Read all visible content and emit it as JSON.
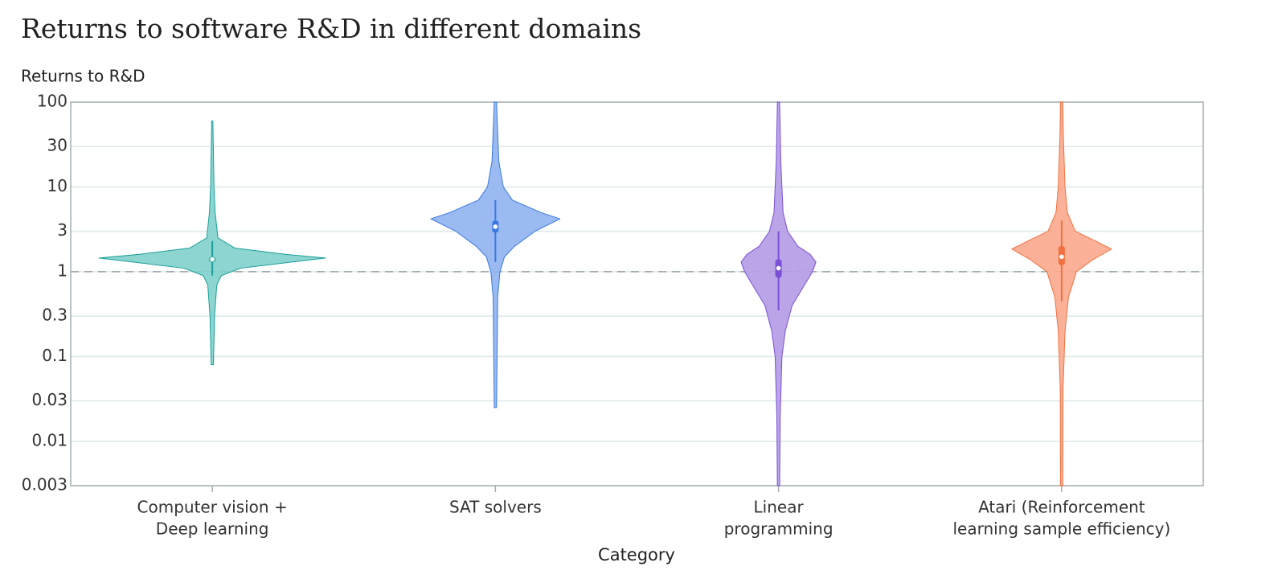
{
  "chart_data": {
    "type": "violin",
    "title": "Returns to software R&D in different domains",
    "y_label": "Returns to R&D",
    "x_label": "Category",
    "log_y": true,
    "grid": true,
    "reference_line": 1,
    "ylim": [
      0.003,
      100
    ],
    "yticks": [
      0.003,
      0.01,
      0.03,
      0.1,
      0.3,
      1,
      3,
      10,
      30,
      100
    ],
    "categories": [
      [
        "Computer vision +",
        "Deep learning"
      ],
      [
        "SAT solvers"
      ],
      [
        "Linear",
        "programming"
      ],
      [
        "Atari (Reinforcement",
        "learning sample efficiency)"
      ]
    ],
    "violins": [
      {
        "color": "#7fd0cc",
        "edge": "#1a9e98",
        "median": 1.4,
        "q1": 1.3,
        "q3": 1.5,
        "whisker_low": 0.9,
        "whisker_high": 2.3,
        "density_values": [
          0.08,
          0.3,
          0.7,
          0.9,
          1.1,
          1.3,
          1.45,
          1.6,
          1.9,
          2.5,
          5,
          10,
          60
        ],
        "density_widths": [
          0.01,
          0.02,
          0.04,
          0.08,
          0.25,
          0.7,
          1.0,
          0.65,
          0.2,
          0.05,
          0.025,
          0.015,
          0.005
        ]
      },
      {
        "color": "#8fb2ef",
        "edge": "#3a78e0",
        "median": 3.4,
        "q1": 2.9,
        "q3": 4,
        "whisker_low": 1.3,
        "whisker_high": 7,
        "density_values": [
          0.025,
          0.1,
          0.5,
          1,
          1.5,
          2,
          3,
          4.2,
          5,
          7,
          10,
          20,
          100
        ],
        "density_widths": [
          0.01,
          0.015,
          0.02,
          0.04,
          0.08,
          0.17,
          0.35,
          0.57,
          0.4,
          0.15,
          0.07,
          0.03,
          0.01
        ]
      },
      {
        "color": "#b39be6",
        "edge": "#7b4fd6",
        "median": 1.1,
        "q1": 0.85,
        "q3": 1.4,
        "whisker_low": 0.35,
        "whisker_high": 3,
        "density_values": [
          0.003,
          0.02,
          0.1,
          0.2,
          0.4,
          0.7,
          1,
          1.3,
          1.6,
          2,
          3,
          5,
          20,
          100
        ],
        "density_widths": [
          0.01,
          0.015,
          0.03,
          0.06,
          0.12,
          0.23,
          0.3,
          0.33,
          0.28,
          0.17,
          0.08,
          0.04,
          0.02,
          0.01
        ]
      },
      {
        "color": "#f9a98d",
        "edge": "#f2703f",
        "median": 1.5,
        "q1": 1.2,
        "q3": 2,
        "whisker_low": 0.45,
        "whisker_high": 4,
        "density_values": [
          0.003,
          0.04,
          0.2,
          0.5,
          1,
          1.4,
          1.85,
          2.3,
          3,
          5,
          10,
          40,
          100
        ],
        "density_widths": [
          0.01,
          0.012,
          0.03,
          0.06,
          0.13,
          0.28,
          0.44,
          0.3,
          0.12,
          0.05,
          0.03,
          0.015,
          0.01
        ]
      }
    ]
  }
}
